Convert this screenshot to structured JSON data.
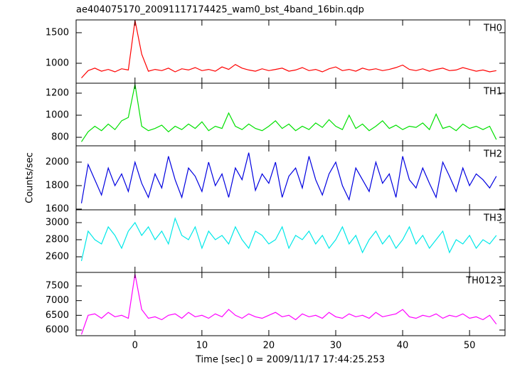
{
  "title": "ae404075170_20091117174425_wam0_bst_4band_16bin.qdp",
  "ylabel": "Counts/sec",
  "xlabel": "Time [sec] 0 = 2009/11/17 17:44:25.253",
  "chart_data": [
    {
      "type": "line",
      "x": [
        -8,
        -7,
        -6,
        -5,
        -4,
        -3,
        -2,
        -1,
        0,
        1,
        2,
        3,
        4,
        5,
        6,
        7,
        8,
        9,
        10,
        11,
        12,
        13,
        14,
        15,
        16,
        17,
        18,
        19,
        20,
        21,
        22,
        23,
        24,
        25,
        26,
        27,
        28,
        29,
        30,
        31,
        32,
        33,
        34,
        35,
        36,
        37,
        38,
        39,
        40,
        41,
        42,
        43,
        44,
        45,
        46,
        47,
        48,
        49,
        50,
        51,
        52,
        53,
        54
      ],
      "series": [
        {
          "name": "TH0",
          "color": "#ff0000",
          "values": [
            760,
            880,
            920,
            870,
            900,
            860,
            910,
            890,
            1700,
            1150,
            870,
            900,
            880,
            920,
            860,
            910,
            890,
            930,
            880,
            900,
            870,
            940,
            900,
            980,
            920,
            890,
            870,
            910,
            880,
            900,
            920,
            870,
            890,
            930,
            880,
            900,
            860,
            910,
            940,
            880,
            900,
            870,
            920,
            890,
            910,
            880,
            900,
            930,
            970,
            900,
            880,
            910,
            870,
            900,
            920,
            880,
            890,
            930,
            900,
            870,
            890,
            860,
            880
          ]
        }
      ],
      "xlim": [
        -8.8,
        55.3
      ],
      "xticks": [
        0,
        10,
        20,
        30,
        40,
        50
      ],
      "ylim": [
        674,
        1709
      ],
      "yticks": [
        1000,
        1500
      ]
    },
    {
      "type": "line",
      "x": [
        -8,
        -7,
        -6,
        -5,
        -4,
        -3,
        -2,
        -1,
        0,
        1,
        2,
        3,
        4,
        5,
        6,
        7,
        8,
        9,
        10,
        11,
        12,
        13,
        14,
        15,
        16,
        17,
        18,
        19,
        20,
        21,
        22,
        23,
        24,
        25,
        26,
        27,
        28,
        29,
        30,
        31,
        32,
        33,
        34,
        35,
        36,
        37,
        38,
        39,
        40,
        41,
        42,
        43,
        44,
        45,
        46,
        47,
        48,
        49,
        50,
        51,
        52,
        53,
        54
      ],
      "series": [
        {
          "name": "TH1",
          "color": "#00e000",
          "values": [
            760,
            850,
            900,
            860,
            920,
            870,
            950,
            980,
            1280,
            900,
            860,
            880,
            910,
            850,
            900,
            870,
            920,
            880,
            940,
            860,
            900,
            880,
            1020,
            900,
            870,
            920,
            880,
            860,
            900,
            950,
            880,
            920,
            860,
            900,
            870,
            930,
            890,
            960,
            900,
            870,
            1000,
            880,
            920,
            860,
            900,
            950,
            880,
            910,
            870,
            900,
            890,
            930,
            870,
            1010,
            880,
            900,
            860,
            920,
            880,
            900,
            870,
            900,
            780
          ]
        }
      ],
      "xlim": [
        -8.8,
        55.3
      ],
      "xticks": [
        0,
        10,
        20,
        30,
        40,
        50
      ],
      "ylim": [
        723,
        1290
      ],
      "yticks": [
        800,
        1000,
        1200
      ]
    },
    {
      "type": "line",
      "x": [
        -8,
        -7,
        -6,
        -5,
        -4,
        -3,
        -2,
        -1,
        0,
        1,
        2,
        3,
        4,
        5,
        6,
        7,
        8,
        9,
        10,
        11,
        12,
        13,
        14,
        15,
        16,
        17,
        18,
        19,
        20,
        21,
        22,
        23,
        24,
        25,
        26,
        27,
        28,
        29,
        30,
        31,
        32,
        33,
        34,
        35,
        36,
        37,
        38,
        39,
        40,
        41,
        42,
        43,
        44,
        45,
        46,
        47,
        48,
        49,
        50,
        51,
        52,
        53,
        54
      ],
      "series": [
        {
          "name": "TH2",
          "color": "#0000e0",
          "values": [
            1650,
            1980,
            1850,
            1720,
            1950,
            1800,
            1900,
            1750,
            2000,
            1820,
            1700,
            1900,
            1780,
            2050,
            1850,
            1700,
            1950,
            1880,
            1750,
            2000,
            1800,
            1900,
            1700,
            1950,
            1850,
            2080,
            1760,
            1900,
            1820,
            2000,
            1700,
            1880,
            1950,
            1780,
            2050,
            1850,
            1720,
            1900,
            2000,
            1800,
            1680,
            1950,
            1850,
            1750,
            2000,
            1820,
            1900,
            1700,
            2050,
            1850,
            1780,
            1950,
            1820,
            1700,
            2000,
            1880,
            1750,
            1950,
            1800,
            1900,
            1850,
            1780,
            1880
          ]
        }
      ],
      "xlim": [
        -8.8,
        55.3
      ],
      "xticks": [
        0,
        10,
        20,
        30,
        40,
        50
      ],
      "ylim": [
        1594,
        2139
      ],
      "yticks": [
        1600,
        1800,
        2000
      ]
    },
    {
      "type": "line",
      "x": [
        -8,
        -7,
        -6,
        -5,
        -4,
        -3,
        -2,
        -1,
        0,
        1,
        2,
        3,
        4,
        5,
        6,
        7,
        8,
        9,
        10,
        11,
        12,
        13,
        14,
        15,
        16,
        17,
        18,
        19,
        20,
        21,
        22,
        23,
        24,
        25,
        26,
        27,
        28,
        29,
        30,
        31,
        32,
        33,
        34,
        35,
        36,
        37,
        38,
        39,
        40,
        41,
        42,
        43,
        44,
        45,
        46,
        47,
        48,
        49,
        50,
        51,
        52,
        53,
        54
      ],
      "series": [
        {
          "name": "TH3",
          "color": "#00e8e8",
          "values": [
            2550,
            2900,
            2800,
            2750,
            2950,
            2850,
            2700,
            2900,
            3000,
            2850,
            2950,
            2800,
            2900,
            2750,
            3050,
            2850,
            2800,
            2950,
            2700,
            2900,
            2800,
            2850,
            2750,
            2950,
            2800,
            2700,
            2900,
            2850,
            2750,
            2800,
            2950,
            2700,
            2850,
            2800,
            2900,
            2750,
            2850,
            2700,
            2800,
            2950,
            2750,
            2850,
            2650,
            2800,
            2900,
            2750,
            2850,
            2700,
            2800,
            2950,
            2750,
            2850,
            2700,
            2800,
            2900,
            2650,
            2800,
            2750,
            2850,
            2700,
            2800,
            2750,
            2850
          ]
        }
      ],
      "xlim": [
        -8.8,
        55.3
      ],
      "xticks": [
        0,
        10,
        20,
        30,
        40,
        50
      ],
      "ylim": [
        2417,
        3150
      ],
      "yticks": [
        2600,
        2800,
        3000
      ]
    },
    {
      "type": "line",
      "x": [
        -8,
        -7,
        -6,
        -5,
        -4,
        -3,
        -2,
        -1,
        0,
        1,
        2,
        3,
        4,
        5,
        6,
        7,
        8,
        9,
        10,
        11,
        12,
        13,
        14,
        15,
        16,
        17,
        18,
        19,
        20,
        21,
        22,
        23,
        24,
        25,
        26,
        27,
        28,
        29,
        30,
        31,
        32,
        33,
        34,
        35,
        36,
        37,
        38,
        39,
        40,
        41,
        42,
        43,
        44,
        45,
        46,
        47,
        48,
        49,
        50,
        51,
        52,
        53,
        54
      ],
      "series": [
        {
          "name": "TH0123",
          "color": "#ff00ff",
          "values": [
            5850,
            6500,
            6550,
            6400,
            6600,
            6450,
            6500,
            6400,
            7900,
            6700,
            6400,
            6450,
            6350,
            6500,
            6550,
            6400,
            6600,
            6450,
            6500,
            6400,
            6550,
            6450,
            6700,
            6500,
            6400,
            6550,
            6450,
            6400,
            6500,
            6600,
            6450,
            6500,
            6350,
            6550,
            6450,
            6500,
            6400,
            6600,
            6450,
            6400,
            6550,
            6450,
            6500,
            6400,
            6600,
            6450,
            6500,
            6550,
            6700,
            6450,
            6400,
            6500,
            6450,
            6550,
            6400,
            6500,
            6450,
            6550,
            6400,
            6450,
            6350,
            6500,
            6200
          ]
        }
      ],
      "xlim": [
        -8.8,
        55.3
      ],
      "xticks": [
        0,
        10,
        20,
        30,
        40,
        50
      ],
      "ylim": [
        5807,
        7959
      ],
      "yticks": [
        6000,
        6500,
        7000,
        7500
      ]
    }
  ]
}
